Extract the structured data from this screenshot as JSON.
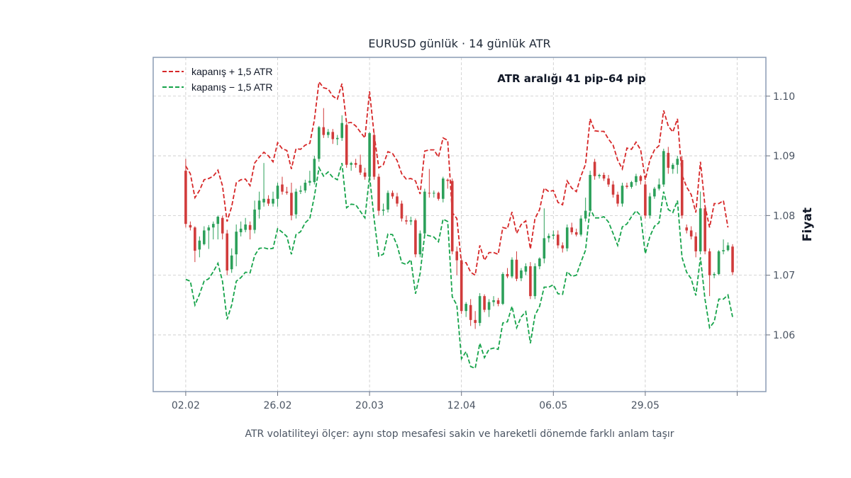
{
  "chart_data": {
    "type": "candlestick",
    "title": "EURUSD günlük · 14 günlük ATR",
    "xlabel": "",
    "ylabel": "Fiyat",
    "caption": "ATR volatiliteyi ölçer: aynı stop mesafesi sakin ve hareketli dönemde farklı anlam taşır",
    "annotation": "ATR aralığı 41 pip–64 pip",
    "ylim": [
      1.0505,
      1.1065
    ],
    "yticks": [
      "1.06",
      "1.07",
      "1.08",
      "1.09",
      "1.10"
    ],
    "ytick_values": [
      1.06,
      1.07,
      1.08,
      1.09,
      1.1
    ],
    "xtick_labels": [
      "02.02",
      "26.02",
      "20.03",
      "12.04",
      "06.05",
      "29.05",
      ""
    ],
    "xtick_days": [
      0,
      24,
      48,
      72,
      96,
      120,
      144
    ],
    "x_range": [
      -8.5,
      151.5
    ],
    "grid": true,
    "legend_position": "top-left",
    "legend": [
      {
        "label": "kapanış + 1,5 ATR",
        "color": "#d62728"
      },
      {
        "label": "kapanış − 1,5 ATR",
        "color": "#16a34a"
      }
    ],
    "colors": {
      "up": "#2ca05a",
      "down": "#d13b3b",
      "upper_band": "#d62728",
      "lower_band": "#16a34a",
      "grid": "#c8c8c8",
      "frame": "#8a9bb4"
    },
    "day_step": 1.2,
    "candles": [
      [
        1.0875,
        1.0895,
        1.078,
        1.0786
      ],
      [
        1.0784,
        1.079,
        1.0775,
        1.078
      ],
      [
        1.078,
        1.0782,
        1.0722,
        1.0741
      ],
      [
        1.0743,
        1.0765,
        1.073,
        1.0758
      ],
      [
        1.0752,
        1.0782,
        1.075,
        1.0775
      ],
      [
        1.0775,
        1.0784,
        1.0744,
        1.078
      ],
      [
        1.078,
        1.079,
        1.076,
        1.0786
      ],
      [
        1.0786,
        1.08,
        1.076,
        1.0798
      ],
      [
        1.0796,
        1.08,
        1.076,
        1.077
      ],
      [
        1.077,
        1.0776,
        1.07,
        1.0708
      ],
      [
        1.071,
        1.0745,
        1.0704,
        1.0733
      ],
      [
        1.0735,
        1.0785,
        1.0715,
        1.0773
      ],
      [
        1.0772,
        1.079,
        1.0765,
        1.0778
      ],
      [
        1.0776,
        1.0796,
        1.0772,
        1.0785
      ],
      [
        1.0784,
        1.079,
        1.076,
        1.0776
      ],
      [
        1.0776,
        1.0825,
        1.077,
        1.081
      ],
      [
        1.081,
        1.084,
        1.0795,
        1.0825
      ],
      [
        1.0822,
        1.0888,
        1.0815,
        1.0828
      ],
      [
        1.0828,
        1.0834,
        1.0816,
        1.082
      ],
      [
        1.082,
        1.084,
        1.0815,
        1.0828
      ],
      [
        1.0828,
        1.0855,
        1.0815,
        1.085
      ],
      [
        1.0852,
        1.0865,
        1.0835,
        1.084
      ],
      [
        1.084,
        1.0848,
        1.0835,
        1.0838
      ],
      [
        1.0838,
        1.0855,
        1.0792,
        1.08
      ],
      [
        1.0802,
        1.0845,
        1.0795,
        1.084
      ],
      [
        1.084,
        1.085,
        1.0836,
        1.0842
      ],
      [
        1.0842,
        1.086,
        1.0838,
        1.0855
      ],
      [
        1.0855,
        1.0875,
        1.085,
        1.0858
      ],
      [
        1.0856,
        1.09,
        1.0852,
        1.0895
      ],
      [
        1.0895,
        1.095,
        1.089,
        1.0948
      ],
      [
        1.0948,
        1.098,
        1.093,
        1.0935
      ],
      [
        1.0935,
        1.0945,
        1.093,
        1.094
      ],
      [
        1.094,
        1.0945,
        1.092,
        1.0928
      ],
      [
        1.0928,
        1.0935,
        1.0918,
        1.093
      ],
      [
        1.093,
        1.0968,
        1.0925,
        1.0955
      ],
      [
        1.0952,
        1.0955,
        1.088,
        1.0885
      ],
      [
        1.0885,
        1.089,
        1.0875,
        1.0888
      ],
      [
        1.0888,
        1.0895,
        1.088,
        1.0885
      ],
      [
        1.0885,
        1.0902,
        1.0868,
        1.0872
      ],
      [
        1.0872,
        1.088,
        1.086,
        1.0865
      ],
      [
        1.0865,
        1.094,
        1.0858,
        1.0938
      ],
      [
        1.0935,
        1.094,
        1.086,
        1.0865
      ],
      [
        1.0865,
        1.087,
        1.08,
        1.0808
      ],
      [
        1.0808,
        1.082,
        1.08,
        1.081
      ],
      [
        1.081,
        1.0842,
        1.0805,
        1.0838
      ],
      [
        1.0838,
        1.0842,
        1.0828,
        1.0832
      ],
      [
        1.0832,
        1.0838,
        1.0815,
        1.082
      ],
      [
        1.082,
        1.0825,
        1.079,
        1.0795
      ],
      [
        1.0792,
        1.08,
        1.0785,
        1.079
      ],
      [
        1.079,
        1.0798,
        1.0784,
        1.0792
      ],
      [
        1.0792,
        1.0795,
        1.073,
        1.0735
      ],
      [
        1.0735,
        1.0775,
        1.073,
        1.077
      ],
      [
        1.077,
        1.0845,
        1.0765,
        1.084
      ],
      [
        1.0838,
        1.0878,
        1.083,
        1.0837
      ],
      [
        1.0837,
        1.0842,
        1.083,
        1.0838
      ],
      [
        1.0838,
        1.084,
        1.0825,
        1.0828
      ],
      [
        1.0828,
        1.0865,
        1.0822,
        1.0862
      ],
      [
        1.086,
        1.0862,
        1.0845,
        1.0858
      ],
      [
        1.0858,
        1.0862,
        1.0735,
        1.074
      ],
      [
        1.074,
        1.0748,
        1.07,
        1.0725
      ],
      [
        1.0725,
        1.0728,
        1.0635,
        1.064
      ],
      [
        1.064,
        1.0655,
        1.063,
        1.0652
      ],
      [
        1.065,
        1.066,
        1.0615,
        1.0625
      ],
      [
        1.0625,
        1.064,
        1.061,
        1.062
      ],
      [
        1.062,
        1.067,
        1.0615,
        1.0665
      ],
      [
        1.0665,
        1.0668,
        1.0638,
        1.0642
      ],
      [
        1.0642,
        1.066,
        1.063,
        1.0655
      ],
      [
        1.0655,
        1.0665,
        1.0648,
        1.0658
      ],
      [
        1.0658,
        1.0662,
        1.0648,
        1.0652
      ],
      [
        1.0652,
        1.0705,
        1.065,
        1.0702
      ],
      [
        1.0702,
        1.0712,
        1.0695,
        1.0698
      ],
      [
        1.0698,
        1.073,
        1.0695,
        1.0726
      ],
      [
        1.0726,
        1.074,
        1.069,
        1.0694
      ],
      [
        1.0695,
        1.0712,
        1.069,
        1.0708
      ],
      [
        1.0706,
        1.072,
        1.07,
        1.0715
      ],
      [
        1.0715,
        1.0722,
        1.066,
        1.0665
      ],
      [
        1.0665,
        1.072,
        1.066,
        1.0715
      ],
      [
        1.0715,
        1.073,
        1.071,
        1.0728
      ],
      [
        1.0728,
        1.0812,
        1.072,
        1.0762
      ],
      [
        1.0762,
        1.077,
        1.0755,
        1.0766
      ],
      [
        1.0766,
        1.0775,
        1.076,
        1.0768
      ],
      [
        1.0768,
        1.0775,
        1.0745,
        1.075
      ],
      [
        1.075,
        1.0755,
        1.0738,
        1.0745
      ],
      [
        1.0745,
        1.0785,
        1.074,
        1.078
      ],
      [
        1.078,
        1.0788,
        1.0768,
        1.0772
      ],
      [
        1.0772,
        1.0778,
        1.0765,
        1.0768
      ],
      [
        1.0768,
        1.08,
        1.0765,
        1.0795
      ],
      [
        1.0795,
        1.083,
        1.079,
        1.0808
      ],
      [
        1.0808,
        1.0875,
        1.0805,
        1.0868
      ],
      [
        1.089,
        1.0895,
        1.086,
        1.0866
      ],
      [
        1.0866,
        1.087,
        1.0862,
        1.0868
      ],
      [
        1.0868,
        1.0872,
        1.0858,
        1.0862
      ],
      [
        1.0862,
        1.0868,
        1.0848,
        1.0852
      ],
      [
        1.0852,
        1.0858,
        1.083,
        1.0835
      ],
      [
        1.0835,
        1.084,
        1.0815,
        1.082
      ],
      [
        1.082,
        1.0855,
        1.0815,
        1.085
      ],
      [
        1.085,
        1.0855,
        1.0845,
        1.0848
      ],
      [
        1.0848,
        1.0858,
        1.0845,
        1.0856
      ],
      [
        1.0856,
        1.087,
        1.085,
        1.0866
      ],
      [
        1.0866,
        1.0868,
        1.0852,
        1.0858
      ],
      [
        1.0852,
        1.0858,
        1.0795,
        1.08
      ],
      [
        1.08,
        1.0838,
        1.0795,
        1.0832
      ],
      [
        1.0832,
        1.0848,
        1.0828,
        1.0845
      ],
      [
        1.0845,
        1.0862,
        1.0842,
        1.0852
      ],
      [
        1.0852,
        1.0912,
        1.0848,
        1.0908
      ],
      [
        1.0905,
        1.0915,
        1.087,
        1.088
      ],
      [
        1.0878,
        1.0888,
        1.087,
        1.0885
      ],
      [
        1.0885,
        1.09,
        1.087,
        1.0895
      ],
      [
        1.0893,
        1.09,
        1.0795,
        1.08
      ],
      [
        1.078,
        1.0785,
        1.077,
        1.0775
      ],
      [
        1.0775,
        1.0782,
        1.076,
        1.0765
      ],
      [
        1.0765,
        1.0772,
        1.073,
        1.074
      ],
      [
        1.074,
        1.084,
        1.0735,
        1.0812
      ],
      [
        1.0812,
        1.0815,
        1.0735,
        1.074
      ],
      [
        1.074,
        1.0745,
        1.0665,
        1.07
      ],
      [
        1.07,
        1.0705,
        1.0695,
        1.0702
      ],
      [
        1.0702,
        1.0742,
        1.07,
        1.074
      ],
      [
        1.074,
        1.076,
        1.0735,
        1.0742
      ],
      [
        1.0742,
        1.0755,
        1.074,
        1.075
      ],
      [
        1.0748,
        1.0752,
        1.07,
        1.0705
      ]
    ],
    "upper_band": [
      1.0883,
      1.087,
      1.083,
      1.0842,
      1.086,
      1.0862,
      1.0866,
      1.0876,
      1.085,
      1.079,
      1.0815,
      1.0855,
      1.086,
      1.0861,
      1.085,
      1.0888,
      1.0898,
      1.0906,
      1.09,
      1.089,
      1.0922,
      1.0912,
      1.0909,
      1.0878,
      1.0912,
      1.0911,
      1.0918,
      1.0921,
      1.096,
      1.1024,
      1.1014,
      1.1012,
      1.1,
      1.0995,
      1.1021,
      1.0955,
      1.0956,
      1.095,
      1.094,
      1.093,
      1.1008,
      1.0935,
      1.088,
      1.0885,
      1.0907,
      1.0904,
      1.0892,
      1.087,
      1.0861,
      1.0862,
      1.0858,
      1.0836,
      1.0908,
      1.091,
      1.091,
      1.0898,
      1.093,
      1.0926,
      1.0805,
      1.0795,
      1.072,
      1.0721,
      1.0705,
      1.07,
      1.075,
      1.0725,
      1.0738,
      1.0738,
      1.0735,
      1.078,
      1.0778,
      1.0806,
      1.077,
      1.0785,
      1.0791,
      1.0744,
      1.0795,
      1.081,
      1.0846,
      1.084,
      1.0842,
      1.0822,
      1.0818,
      1.0858,
      1.0846,
      1.084,
      1.0866,
      1.0886,
      1.0962,
      1.0942,
      1.0941,
      1.0941,
      1.0928,
      1.0918,
      1.0893,
      1.0878,
      1.0913,
      1.0911,
      1.0923,
      1.091,
      1.086,
      1.0893,
      1.091,
      1.0917,
      1.0976,
      1.095,
      1.094,
      1.0962,
      1.0868,
      1.0848,
      1.0835,
      1.0805,
      1.089,
      1.0816,
      1.078,
      1.082,
      1.082,
      1.0825,
      1.078
    ],
    "lower_band": [
      1.0693,
      1.069,
      1.065,
      1.0668,
      1.069,
      1.0694,
      1.0706,
      1.072,
      1.069,
      1.0626,
      1.065,
      1.069,
      1.0696,
      1.0705,
      1.0704,
      1.0733,
      1.0745,
      1.0746,
      1.0744,
      1.0745,
      1.0778,
      1.0772,
      1.0765,
      1.0735,
      1.0768,
      1.0773,
      1.0788,
      1.0795,
      1.0832,
      1.088,
      1.0866,
      1.0873,
      1.0864,
      1.086,
      1.0888,
      1.0813,
      1.0819,
      1.0818,
      1.0807,
      1.0796,
      1.0866,
      1.0794,
      1.0732,
      1.0735,
      1.0769,
      1.0768,
      1.075,
      1.0721,
      1.0718,
      1.0726,
      1.0669,
      1.0703,
      1.0768,
      1.0766,
      1.0764,
      1.0756,
      1.0794,
      1.079,
      1.0664,
      1.065,
      1.056,
      1.0572,
      1.0547,
      1.0544,
      1.0586,
      1.0562,
      1.0576,
      1.0578,
      1.0576,
      1.062,
      1.0622,
      1.0648,
      1.0612,
      1.063,
      1.0639,
      1.0586,
      1.0633,
      1.0648,
      1.068,
      1.068,
      1.0684,
      1.0669,
      1.0668,
      1.0706,
      1.0698,
      1.07,
      1.0722,
      1.0742,
      1.0812,
      1.0796,
      1.0796,
      1.0798,
      1.0789,
      1.077,
      1.075,
      1.0781,
      1.0786,
      1.0798,
      1.0808,
      1.08,
      1.0736,
      1.0765,
      1.0782,
      1.0788,
      1.084,
      1.081,
      1.0805,
      1.0825,
      1.073,
      1.0705,
      1.0694,
      1.0666,
      1.073,
      1.066,
      1.0612,
      1.0622,
      1.066,
      1.066,
      1.0667,
      1.063
    ]
  }
}
